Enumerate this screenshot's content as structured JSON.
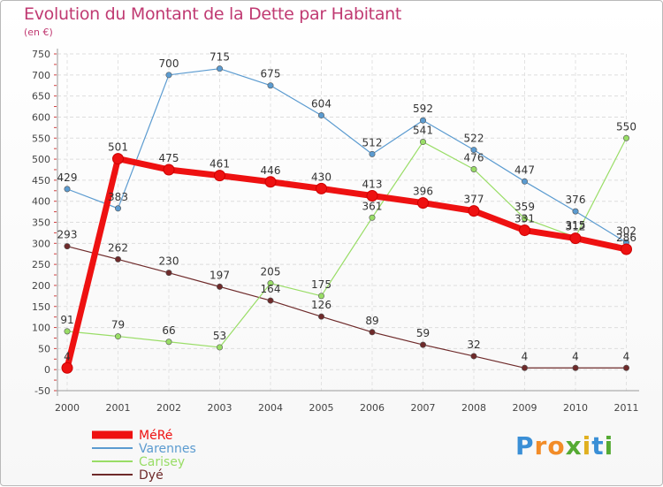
{
  "chart_data": {
    "type": "line",
    "title": "Evolution du Montant de la Dette par Habitant",
    "subtitle": "(en €)",
    "xlabel": "",
    "ylabel": "",
    "x": [
      "2000",
      "2001",
      "2002",
      "2003",
      "2004",
      "2005",
      "2006",
      "2007",
      "2008",
      "2009",
      "2010",
      "2011"
    ],
    "ylim": [
      -50,
      750
    ],
    "yticks": [
      -50,
      0,
      50,
      100,
      150,
      200,
      250,
      300,
      350,
      400,
      450,
      500,
      550,
      600,
      650,
      700,
      750
    ],
    "grid": true,
    "legend_position": "bottom-left",
    "series": [
      {
        "name": "MéRé",
        "color": "#ee1111",
        "values": [
          4,
          501,
          475,
          461,
          446,
          430,
          413,
          396,
          377,
          331,
          312,
          286
        ]
      },
      {
        "name": "Varennes",
        "color": "#5b9bd0",
        "values": [
          429,
          383,
          700,
          715,
          675,
          604,
          512,
          592,
          522,
          447,
          376,
          302
        ]
      },
      {
        "name": "Carisey",
        "color": "#99dd66",
        "values": [
          91,
          79,
          66,
          53,
          205,
          175,
          361,
          541,
          476,
          359,
          315,
          550
        ]
      },
      {
        "name": "Dyé",
        "color": "#6e2a2a",
        "values": [
          293,
          262,
          230,
          197,
          164,
          126,
          89,
          59,
          32,
          4,
          4,
          4
        ]
      }
    ]
  },
  "brand": {
    "letters": [
      "P",
      "r",
      "o",
      "x",
      "i",
      "t",
      "i"
    ],
    "colors": [
      "#3a8fd6",
      "#f28c28",
      "#f28c28",
      "#55aa33",
      "#e0b020",
      "#3a8fd6",
      "#55aa33"
    ]
  }
}
